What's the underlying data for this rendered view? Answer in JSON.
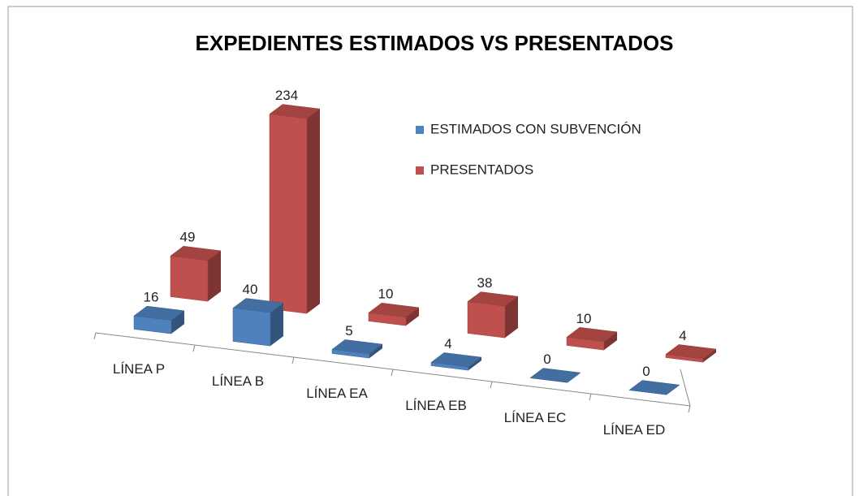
{
  "chart_data": {
    "type": "bar3d",
    "title": "EXPEDIENTES ESTIMADOS VS PRESENTADOS",
    "categories": [
      "LÍNEA P",
      "LÍNEA B",
      "LÍNEA EA",
      "LÍNEA EB",
      "LÍNEA EC",
      "LÍNEA ED"
    ],
    "series": [
      {
        "name": "ESTIMADOS CON SUBVENCIÓN",
        "color": "#4f81bd",
        "values": [
          16,
          40,
          5,
          4,
          0,
          0
        ]
      },
      {
        "name": "PRESENTADOS",
        "color": "#c0504d",
        "values": [
          49,
          234,
          10,
          38,
          10,
          4
        ]
      }
    ]
  }
}
